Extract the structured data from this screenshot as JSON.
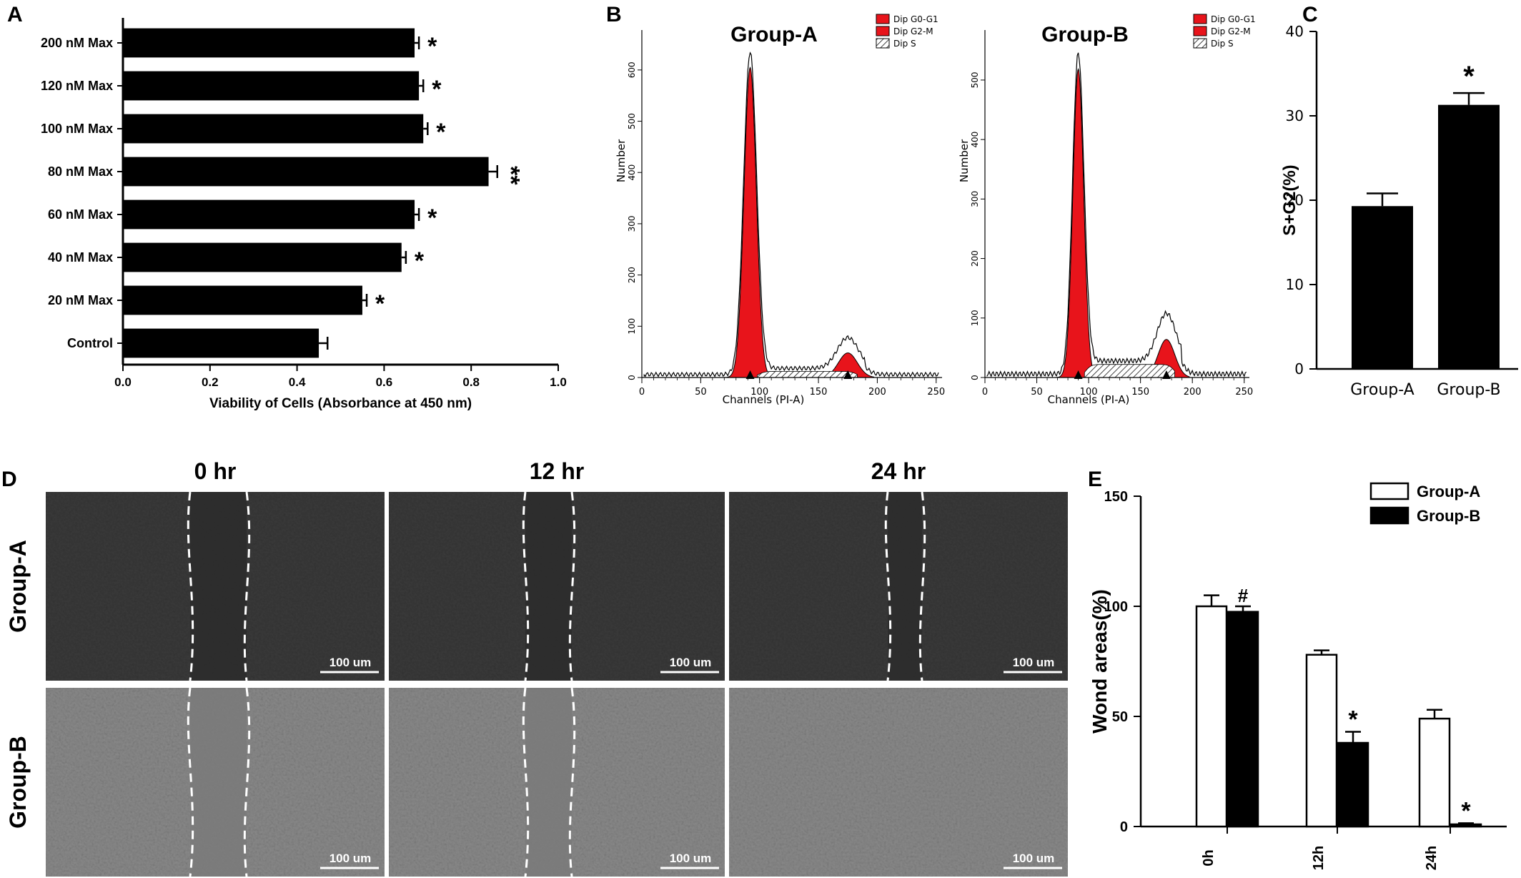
{
  "panel_letters": {
    "a": "A",
    "b": "B",
    "c": "C",
    "d": "D",
    "e": "E"
  },
  "chart_data": [
    {
      "panel": "A",
      "type": "bar",
      "orientation": "horizontal",
      "categories": [
        "200 nM Max",
        "120 nM Max",
        "100 nM Max",
        "80 nM Max",
        "60 nM Max",
        "40 nM Max",
        "20 nM Max",
        "Control"
      ],
      "values": [
        0.67,
        0.68,
        0.69,
        0.84,
        0.67,
        0.64,
        0.55,
        0.45
      ],
      "errors": [
        0.01,
        0.01,
        0.01,
        0.02,
        0.01,
        0.01,
        0.01,
        0.02
      ],
      "annotations": [
        "*",
        "*",
        "*",
        "**",
        "*",
        "*",
        "*",
        ""
      ],
      "xlabel": "Viability of Cells (Absorbance at 450 nm)",
      "xlim": [
        0,
        1.0
      ],
      "xticks": [
        "0.0",
        "0.2",
        "0.4",
        "0.6",
        "0.8",
        "1.0"
      ],
      "color": "#000000"
    },
    {
      "panel": "B",
      "type": "area",
      "subplots": [
        {
          "title": "Group-A",
          "xlabel": "Channels (PI-A)",
          "ylabel": "Number",
          "xticks": [
            "0",
            "50",
            "100",
            "150",
            "200",
            "250"
          ],
          "yticks": [
            "0",
            "100",
            "200",
            "300",
            "400",
            "500",
            "600"
          ],
          "xlim": [
            0,
            255
          ],
          "ylim": [
            0,
            650
          ],
          "legend": [
            "Dip G0-G1",
            "Dip G2-M",
            "Dip S"
          ],
          "peaks": [
            {
              "channel": 92,
              "height": 630
            },
            {
              "channel": 175,
              "height": 60
            }
          ]
        },
        {
          "title": "Group-B",
          "xlabel": "Channels (PI-A)",
          "ylabel": "Number",
          "xticks": [
            "0",
            "50",
            "100",
            "150",
            "200",
            "250"
          ],
          "yticks": [
            "0",
            "100",
            "200",
            "300",
            "400",
            "500"
          ],
          "xlim": [
            0,
            255
          ],
          "ylim": [
            0,
            560
          ],
          "legend": [
            "Dip G0-G1",
            "Dip G2-M",
            "Dip S"
          ],
          "peaks": [
            {
              "channel": 90,
              "height": 540
            },
            {
              "channel": 175,
              "height": 80
            }
          ]
        }
      ],
      "colors": {
        "g0g1": "#e8141b",
        "g2m": "#e8141b",
        "s": "#ffffff"
      }
    },
    {
      "panel": "C",
      "type": "bar",
      "categories": [
        "Group-A",
        "Group-B"
      ],
      "values": [
        19.3,
        31.3
      ],
      "errors": [
        1.5,
        1.4
      ],
      "annotations": [
        "",
        "*"
      ],
      "ylabel": "S+G2(%)",
      "ylim": [
        0,
        40
      ],
      "yticks": [
        "0",
        "10",
        "20",
        "30",
        "40"
      ],
      "color": "#000000"
    },
    {
      "panel": "E",
      "type": "bar",
      "categories": [
        "0h",
        "12h",
        "24h"
      ],
      "series": [
        {
          "name": "Group-A",
          "values": [
            100,
            78,
            49
          ],
          "errors": [
            5,
            2,
            4
          ],
          "annotations": [
            "",
            "",
            ""
          ],
          "fill": "#ffffff"
        },
        {
          "name": "Group-B",
          "values": [
            97.5,
            38,
            1
          ],
          "errors": [
            2.5,
            5,
            0.5
          ],
          "annotations": [
            "#",
            "*",
            "*"
          ],
          "fill": "#000000"
        }
      ],
      "ylabel": "Wond areas(%)",
      "ylim": [
        0,
        150
      ],
      "yticks": [
        "0",
        "50",
        "100",
        "150"
      ]
    }
  ],
  "panel_d": {
    "columns": [
      "0 hr",
      "12 hr",
      "24 hr"
    ],
    "rows": [
      "Group-A",
      "Group-B"
    ],
    "scale_bar": "100 um"
  }
}
